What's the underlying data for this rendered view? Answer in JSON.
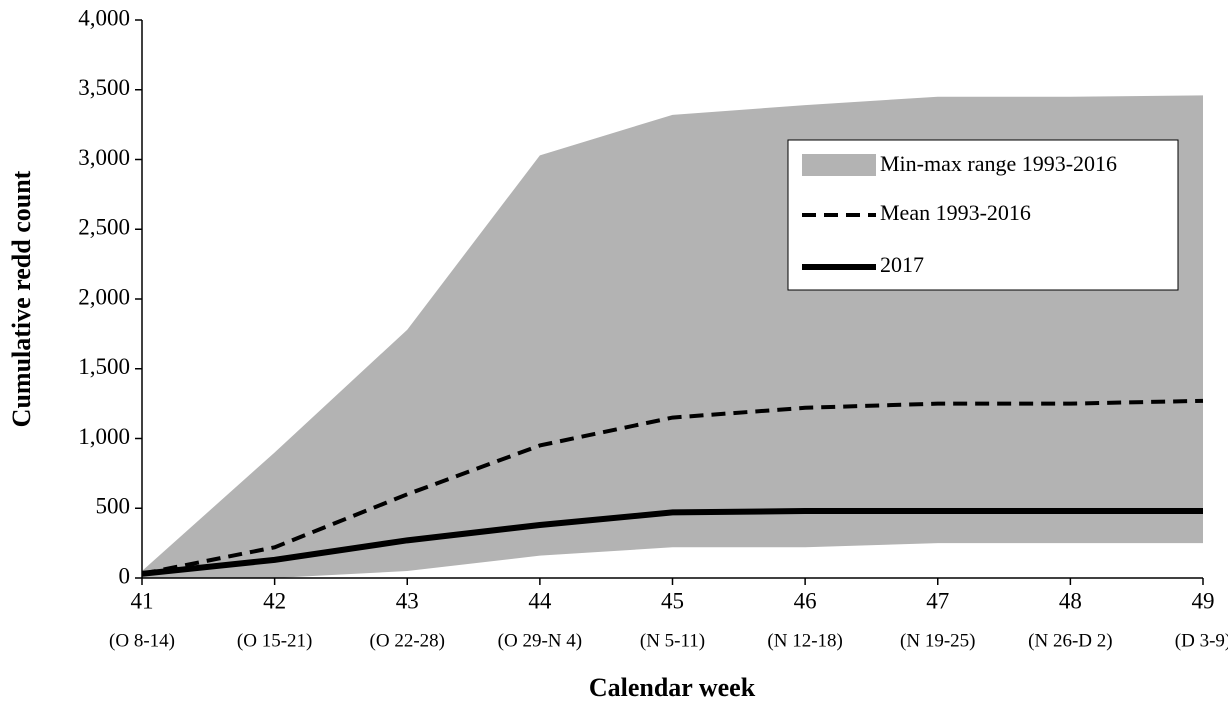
{
  "chart_data": {
    "type": "line",
    "x_label": "Calendar week",
    "y_label": "Cumulative  redd count",
    "x": [
      41,
      42,
      43,
      44,
      45,
      46,
      47,
      48,
      49
    ],
    "xlim": [
      41,
      49
    ],
    "xticks": [
      41,
      42,
      43,
      44,
      45,
      46,
      47,
      48,
      49
    ],
    "xtick_sublabels": [
      "(O 8-14)",
      "(O 15-21)",
      "(O 22-28)",
      "(O 29-N 4)",
      "(N 5-11)",
      "(N 12-18)",
      "(N 19-25)",
      "(N 26-D 2)",
      "(D 3-9)"
    ],
    "ylim": [
      0,
      4000
    ],
    "yticks": [
      0,
      500,
      {
        "value": 1000,
        "label": "1,000"
      },
      {
        "value": 1500,
        "label": "1,500"
      },
      {
        "value": 2000,
        "label": "2,000"
      },
      {
        "value": 2500,
        "label": "2,500"
      },
      {
        "value": 3000,
        "label": "3,000"
      },
      {
        "value": 3500,
        "label": "3,500"
      },
      {
        "value": 4000,
        "label": "4,000"
      }
    ],
    "range": {
      "name": "Min-max range 1993-2016",
      "color": "#b3b3b3",
      "lower": [
        0,
        0,
        50,
        160,
        220,
        220,
        250,
        250,
        250
      ],
      "upper": [
        50,
        900,
        1780,
        3030,
        3320,
        3390,
        3450,
        3450,
        3460
      ]
    },
    "series": [
      {
        "name": "Mean 1993-2016",
        "color": "#000000",
        "dash": true,
        "values": [
          30,
          220,
          600,
          950,
          1150,
          1220,
          1250,
          1250,
          1270
        ]
      },
      {
        "name": "2017",
        "color": "#000000",
        "dash": false,
        "values": [
          30,
          130,
          270,
          380,
          470,
          480,
          480,
          480,
          480
        ]
      }
    ]
  }
}
